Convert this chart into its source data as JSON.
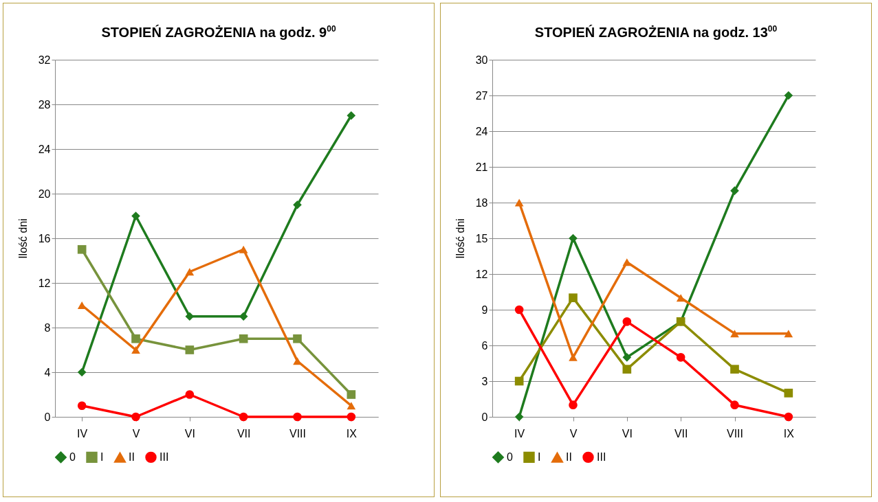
{
  "chart_data": [
    {
      "type": "line",
      "title": "STOPIEŃ ZAGROŻENIA na godz. 9$^{00}$",
      "ylabel": "Ilość dni",
      "categories": [
        "IV",
        "V",
        "VI",
        "VII",
        "VIII",
        "IX"
      ],
      "ylim": [
        0,
        32
      ],
      "yticks": [
        0,
        4,
        8,
        12,
        16,
        20,
        24,
        28,
        32
      ],
      "grid": "y",
      "legend": "bottom",
      "line_style": "solid",
      "series": [
        {
          "name": "0",
          "color": "#1e7b1e",
          "marker": "diamond",
          "values": [
            4,
            18,
            9,
            9,
            19,
            27
          ]
        },
        {
          "name": "I",
          "color": "#77933c",
          "marker": "square",
          "values": [
            15,
            7,
            6,
            7,
            7,
            2
          ]
        },
        {
          "name": "II",
          "color": "#e46c0a",
          "marker": "triangle",
          "values": [
            10,
            6,
            13,
            15,
            5,
            1
          ]
        },
        {
          "name": "III",
          "color": "#ff0000",
          "marker": "circle",
          "values": [
            1,
            0,
            2,
            0,
            0,
            0
          ]
        }
      ]
    },
    {
      "type": "line",
      "title": "STOPIEŃ ZAGROŻENIA na godz. 13$^{00}$",
      "ylabel": "Ilość dni",
      "categories": [
        "IV",
        "V",
        "VI",
        "VII",
        "VIII",
        "IX"
      ],
      "ylim": [
        0,
        30
      ],
      "yticks": [
        0,
        3,
        6,
        9,
        12,
        15,
        18,
        21,
        24,
        27,
        30
      ],
      "grid": "y",
      "legend": "bottom",
      "line_style": "solid",
      "series": [
        {
          "name": "0",
          "color": "#1e7b1e",
          "marker": "diamond",
          "values": [
            0,
            15,
            5,
            8,
            19,
            27
          ]
        },
        {
          "name": "I",
          "color": "#8c8c00",
          "marker": "square",
          "values": [
            3,
            10,
            4,
            8,
            4,
            2
          ]
        },
        {
          "name": "II",
          "color": "#e46c0a",
          "marker": "triangle",
          "values": [
            18,
            5,
            13,
            10,
            7,
            7
          ]
        },
        {
          "name": "III",
          "color": "#ff0000",
          "marker": "circle",
          "values": [
            9,
            1,
            8,
            5,
            1,
            0
          ]
        }
      ]
    }
  ]
}
